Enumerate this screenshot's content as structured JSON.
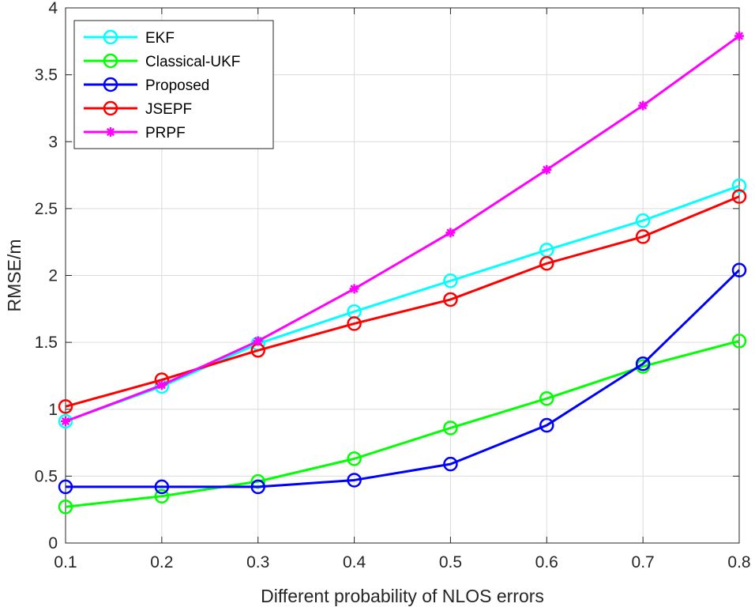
{
  "chart_data": {
    "type": "line",
    "title": "",
    "xlabel": "Different probability of NLOS errors",
    "ylabel": "RMSE/m",
    "xlim": [
      0.1,
      0.8
    ],
    "ylim": [
      0,
      4
    ],
    "x_ticks": [
      "0.1",
      "0.2",
      "0.3",
      "0.4",
      "0.5",
      "0.6",
      "0.7",
      "0.8"
    ],
    "y_ticks": [
      "0",
      "0.5",
      "1",
      "1.5",
      "2",
      "2.5",
      "3",
      "3.5",
      "4"
    ],
    "grid": true,
    "legend_position": "top-left",
    "x": [
      0.1,
      0.2,
      0.3,
      0.4,
      0.5,
      0.6,
      0.7,
      0.8
    ],
    "series": [
      {
        "name": "EKF",
        "color": "#00ffff",
        "marker": "circle",
        "values": [
          0.91,
          1.17,
          1.49,
          1.73,
          1.96,
          2.19,
          2.41,
          2.67
        ]
      },
      {
        "name": "Classical-UKF",
        "color": "#00ff00",
        "marker": "circle",
        "values": [
          0.27,
          0.35,
          0.46,
          0.63,
          0.86,
          1.08,
          1.32,
          1.51
        ]
      },
      {
        "name": "Proposed",
        "color": "#0000ff",
        "marker": "circle",
        "values": [
          0.42,
          0.42,
          0.42,
          0.47,
          0.59,
          0.88,
          1.34,
          2.04
        ]
      },
      {
        "name": "JSEPF",
        "color": "#ff0000",
        "marker": "circle",
        "values": [
          1.02,
          1.22,
          1.44,
          1.64,
          1.82,
          2.09,
          2.29,
          2.59
        ]
      },
      {
        "name": "PRPF",
        "color": "#ff00ff",
        "marker": "asterisk",
        "values": [
          0.91,
          1.18,
          1.51,
          1.9,
          2.32,
          2.79,
          3.27,
          3.79
        ]
      }
    ]
  }
}
